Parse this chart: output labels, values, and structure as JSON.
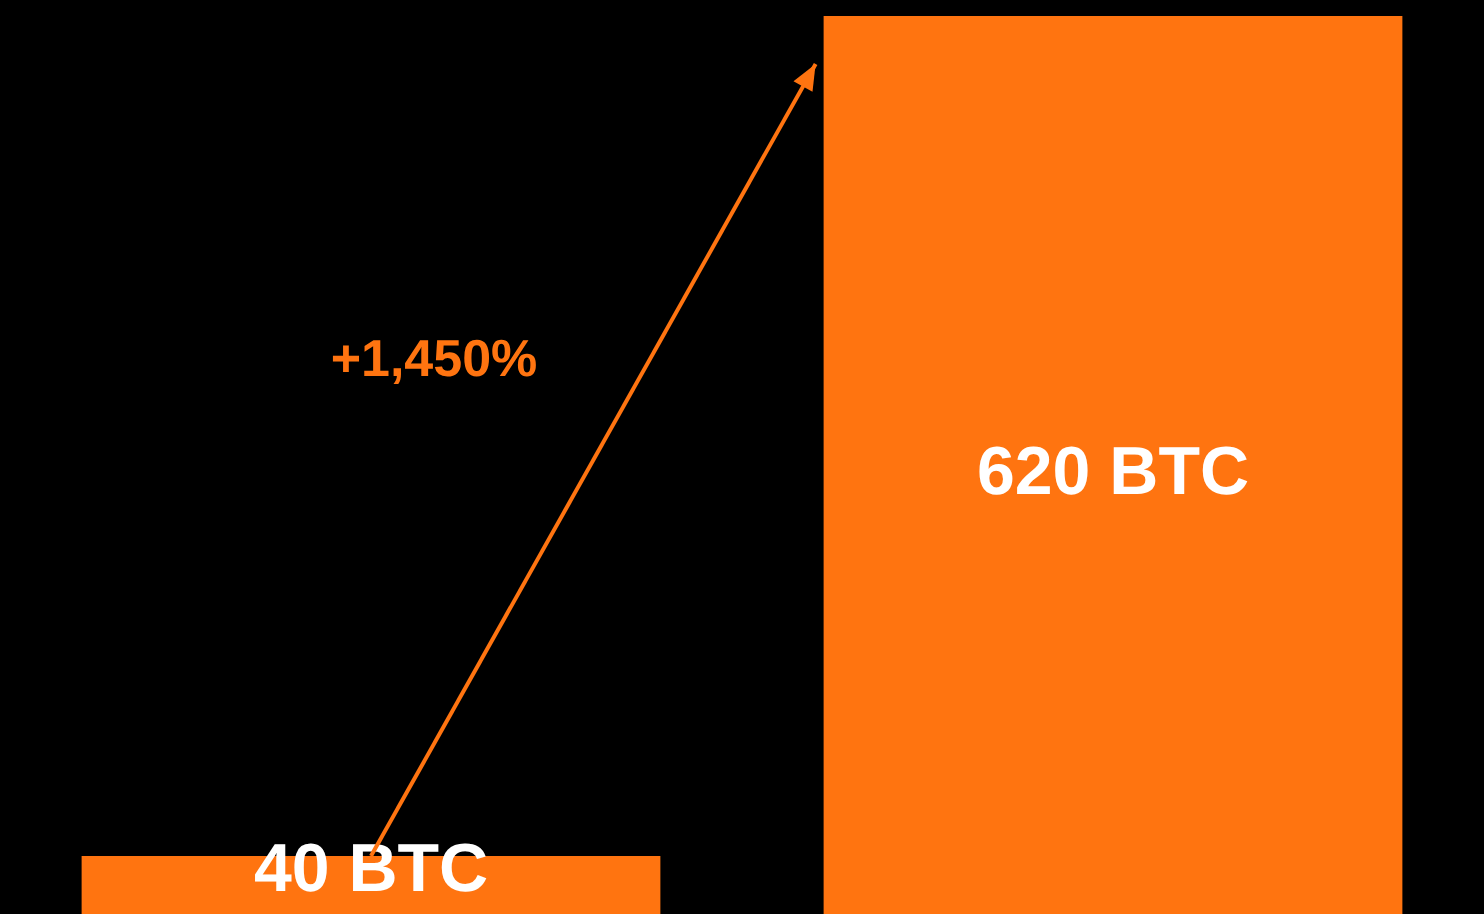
{
  "chart_data": {
    "type": "bar",
    "categories": [
      null,
      null
    ],
    "values": [
      40,
      620
    ],
    "color": "#ff7410",
    "value_labels": [
      "40 BTC",
      "620 BTC"
    ],
    "annotations": [
      "+1,450%"
    ],
    "tick_labels": false,
    "legend": false
  }
}
